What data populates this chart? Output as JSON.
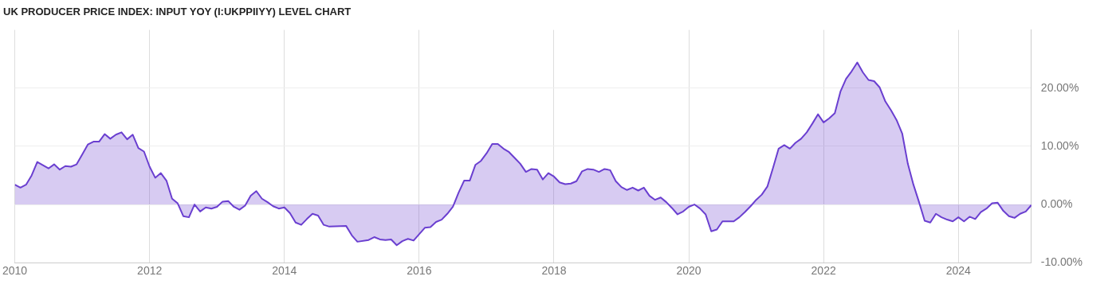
{
  "chart_data": {
    "type": "area",
    "title": "UK PRODUCER PRICE INDEX: INPUT YOY (I:UKPPIIYY) LEVEL CHART",
    "x": [
      "2010-01",
      "2010-02",
      "2010-03",
      "2010-04",
      "2010-05",
      "2010-07",
      "2010-08",
      "2010-09",
      "2010-10",
      "2010-11",
      "2010-12",
      "2011-01",
      "2011-02",
      "2011-03",
      "2011-04",
      "2011-05",
      "2011-06",
      "2011-07",
      "2011-08",
      "2011-09",
      "2011-10",
      "2011-11",
      "2011-12",
      "2012-01",
      "2012-02",
      "2012-03",
      "2012-04",
      "2012-05",
      "2012-06",
      "2012-07",
      "2012-08",
      "2012-09",
      "2012-10",
      "2012-11",
      "2012-12",
      "2013-01",
      "2013-02",
      "2013-03",
      "2013-04",
      "2013-05",
      "2013-06",
      "2013-07",
      "2013-08",
      "2013-09",
      "2013-10",
      "2013-11",
      "2013-12",
      "2014-01",
      "2014-02",
      "2014-03",
      "2014-04",
      "2014-05",
      "2014-06",
      "2014-07",
      "2014-08",
      "2014-09",
      "2014-12",
      "2015-01",
      "2015-02",
      "2015-04",
      "2015-05",
      "2015-06",
      "2015-07",
      "2015-08",
      "2015-09",
      "2015-10",
      "2015-11",
      "2015-12",
      "2016-01",
      "2016-02",
      "2016-03",
      "2016-04",
      "2016-05",
      "2016-06",
      "2016-07",
      "2016-08",
      "2016-09",
      "2016-10",
      "2016-11",
      "2016-12",
      "2017-01",
      "2017-02",
      "2017-03",
      "2017-04",
      "2017-05",
      "2017-06",
      "2017-07",
      "2017-08",
      "2017-09",
      "2017-10",
      "2017-11",
      "2017-12",
      "2018-01",
      "2018-02",
      "2018-03",
      "2018-04",
      "2018-05",
      "2018-06",
      "2018-07",
      "2018-08",
      "2018-09",
      "2018-10",
      "2018-11",
      "2018-12",
      "2019-01",
      "2019-02",
      "2019-03",
      "2019-04",
      "2019-05",
      "2019-06",
      "2019-07",
      "2019-08",
      "2019-09",
      "2019-10",
      "2019-11",
      "2019-12",
      "2020-01",
      "2020-02",
      "2020-03",
      "2020-04",
      "2020-05",
      "2020-06",
      "2020-07",
      "2020-08",
      "2020-09",
      "2020-10",
      "2020-11",
      "2020-12",
      "2021-01",
      "2021-02",
      "2021-03",
      "2021-04",
      "2021-05",
      "2021-06",
      "2021-07",
      "2021-08",
      "2021-09",
      "2021-10",
      "2021-11",
      "2021-12",
      "2022-01",
      "2022-02",
      "2022-03",
      "2022-04",
      "2022-05",
      "2022-06",
      "2022-07",
      "2022-08",
      "2022-09",
      "2022-10",
      "2022-11",
      "2022-12",
      "2023-01",
      "2023-02",
      "2023-03",
      "2023-04",
      "2023-05",
      "2023-06",
      "2023-07",
      "2023-08",
      "2023-09",
      "2023-10",
      "2023-11",
      "2023-12",
      "2024-01",
      "2024-02",
      "2024-03",
      "2024-04",
      "2024-05",
      "2024-06",
      "2024-07",
      "2024-08",
      "2024-09",
      "2024-10",
      "2024-11",
      "2024-12",
      "2025-01",
      "2025-02"
    ],
    "series": [
      {
        "color": "#6a3fd0",
        "values": [
          3.4,
          2.9,
          3.4,
          5.0,
          7.3,
          6.2,
          6.9,
          6.0,
          6.6,
          6.5,
          6.9,
          8.6,
          10.3,
          10.8,
          10.8,
          12.1,
          11.3,
          12.0,
          12.4,
          11.2,
          12.0,
          9.7,
          9.1,
          6.5,
          4.6,
          5.4,
          4.1,
          1.0,
          0.2,
          -2.0,
          -2.2,
          0.0,
          -1.2,
          -0.5,
          -0.7,
          -0.4,
          0.5,
          0.6,
          -0.4,
          -0.9,
          -0.2,
          1.5,
          2.3,
          1.0,
          0.4,
          -0.3,
          -0.7,
          -0.5,
          -1.5,
          -3.1,
          -3.5,
          -2.5,
          -1.6,
          -1.9,
          -3.5,
          -3.8,
          -3.7,
          -5.3,
          -6.4,
          -6.1,
          -5.6,
          -6.0,
          -6.1,
          -6.0,
          -7.0,
          -6.3,
          -5.9,
          -6.2,
          -5.1,
          -4.0,
          -3.9,
          -3.0,
          -2.6,
          -1.6,
          -0.4,
          2.0,
          4.1,
          4.1,
          6.8,
          7.5,
          8.8,
          10.4,
          10.4,
          9.6,
          9.0,
          8.0,
          7.0,
          5.6,
          6.1,
          6.0,
          4.3,
          5.4,
          4.8,
          3.8,
          3.5,
          3.6,
          4.0,
          5.7,
          6.1,
          6.0,
          5.6,
          6.1,
          5.9,
          4.0,
          3.0,
          2.5,
          2.9,
          2.4,
          2.9,
          1.5,
          0.8,
          1.2,
          0.4,
          -0.6,
          -1.7,
          -1.2,
          -0.4,
          0.0,
          -0.7,
          -1.7,
          -4.6,
          -4.3,
          -2.9,
          -2.9,
          -2.9,
          -2.2,
          -1.3,
          -0.3,
          0.8,
          1.7,
          3.1,
          6.3,
          9.6,
          10.2,
          9.6,
          10.6,
          11.3,
          12.4,
          13.9,
          15.5,
          14.1,
          14.8,
          15.7,
          19.4,
          21.6,
          22.9,
          24.4,
          22.7,
          21.4,
          21.2,
          20.1,
          17.7,
          16.2,
          14.5,
          12.2,
          7.0,
          3.4,
          0.4,
          -2.8,
          -3.1,
          -1.6,
          -2.2,
          -2.6,
          -2.9,
          -2.2,
          -2.9,
          -2.1,
          -2.5,
          -1.3,
          -0.7,
          0.2,
          0.3,
          -1.1,
          -2.0,
          -2.3,
          -1.6,
          -1.2,
          -0.1
        ]
      }
    ],
    "xlim": [
      "2010-01",
      "2025-02"
    ],
    "xticks": [
      {
        "value": "2010",
        "label": "2010"
      },
      {
        "value": "2012",
        "label": "2012"
      },
      {
        "value": "2014",
        "label": "2014"
      },
      {
        "value": "2016",
        "label": "2016"
      },
      {
        "value": "2018",
        "label": "2018"
      },
      {
        "value": "2020",
        "label": "2020"
      },
      {
        "value": "2022",
        "label": "2022"
      },
      {
        "value": "2024",
        "label": "2024"
      }
    ],
    "ylim": [
      -10,
      30
    ],
    "yticks": [
      {
        "value": -10,
        "label": "-10.00%"
      },
      {
        "value": 0,
        "label": "0.00%"
      },
      {
        "value": 10,
        "label": "10.00%"
      },
      {
        "value": 20,
        "label": "20.00%"
      }
    ],
    "grid": true,
    "legend": false
  }
}
